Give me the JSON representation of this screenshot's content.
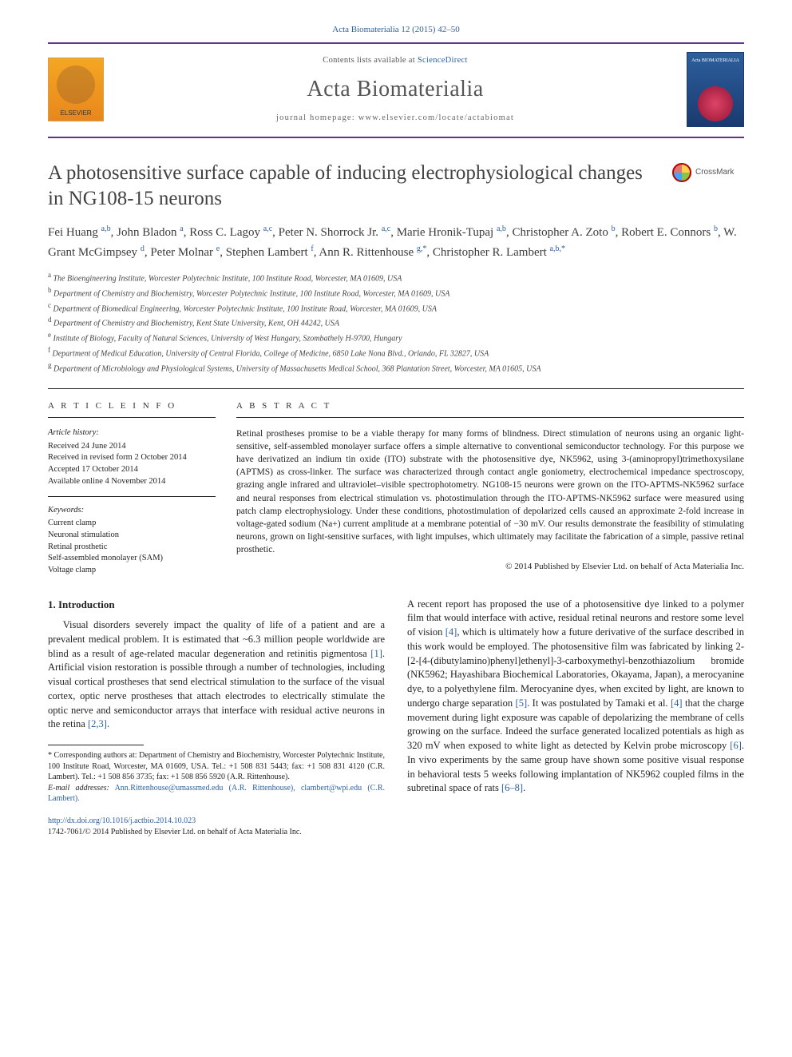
{
  "citation": "Acta Biomaterialia 12 (2015) 42–50",
  "header": {
    "publisher": "ELSEVIER",
    "avail_prefix": "Contents lists available at ",
    "avail_link": "ScienceDirect",
    "journal_name": "Acta Biomaterialia",
    "homepage_label": "journal homepage: ",
    "homepage_url": "www.elsevier.com/locate/actabiomat",
    "cover_label": "Acta BIOMATERIALIA"
  },
  "crossmark_label": "CrossMark",
  "article_title": "A photosensitive surface capable of inducing electrophysiological changes in NG108-15 neurons",
  "authors_html": "Fei Huang <sup>a,b</sup>, John Bladon <sup>a</sup>, Ross C. Lagoy <sup>a,c</sup>, Peter N. Shorrock Jr. <sup>a,c</sup>, Marie Hronik-Tupaj <sup>a,b</sup>, Christopher A. Zoto <sup>b</sup>, Robert E. Connors <sup>b</sup>, W. Grant McGimpsey <sup>d</sup>, Peter Molnar <sup>e</sup>, Stephen Lambert <sup>f</sup>, Ann R. Rittenhouse <sup>g,*</sup>, Christopher R. Lambert <sup>a,b,*</sup>",
  "affiliations": [
    {
      "label": "a",
      "text": "The Bioengineering Institute, Worcester Polytechnic Institute, 100 Institute Road, Worcester, MA 01609, USA"
    },
    {
      "label": "b",
      "text": "Department of Chemistry and Biochemistry, Worcester Polytechnic Institute, 100 Institute Road, Worcester, MA 01609, USA"
    },
    {
      "label": "c",
      "text": "Department of Biomedical Engineering, Worcester Polytechnic Institute, 100 Institute Road, Worcester, MA 01609, USA"
    },
    {
      "label": "d",
      "text": "Department of Chemistry and Biochemistry, Kent State University, Kent, OH 44242, USA"
    },
    {
      "label": "e",
      "text": "Institute of Biology, Faculty of Natural Sciences, University of West Hungary, Szombathely H-9700, Hungary"
    },
    {
      "label": "f",
      "text": "Department of Medical Education, University of Central Florida, College of Medicine, 6850 Lake Nona Blvd., Orlando, FL 32827, USA"
    },
    {
      "label": "g",
      "text": "Department of Microbiology and Physiological Systems, University of Massachusetts Medical School, 368 Plantation Street, Worcester, MA 01605, USA"
    }
  ],
  "info_head": "A R T I C L E   I N F O",
  "abs_head": "A B S T R A C T",
  "history_label": "Article history:",
  "history": [
    "Received 24 June 2014",
    "Received in revised form 2 October 2014",
    "Accepted 17 October 2014",
    "Available online 4 November 2014"
  ],
  "keywords_label": "Keywords:",
  "keywords": [
    "Current clamp",
    "Neuronal stimulation",
    "Retinal prosthetic",
    "Self-assembled monolayer (SAM)",
    "Voltage clamp"
  ],
  "abstract": "Retinal prostheses promise to be a viable therapy for many forms of blindness. Direct stimulation of neurons using an organic light-sensitive, self-assembled monolayer surface offers a simple alternative to conventional semiconductor technology. For this purpose we have derivatized an indium tin oxide (ITO) substrate with the photosensitive dye, NK5962, using 3-(aminopropyl)trimethoxysilane (APTMS) as cross-linker. The surface was characterized through contact angle goniometry, electrochemical impedance spectroscopy, grazing angle infrared and ultraviolet–visible spectrophotometry. NG108-15 neurons were grown on the ITO-APTMS-NK5962 surface and neural responses from electrical stimulation vs. photostimulation through the ITO-APTMS-NK5962 surface were measured using patch clamp electrophysiology. Under these conditions, photostimulation of depolarized cells caused an approximate 2-fold increase in voltage-gated sodium (Na+) current amplitude at a membrane potential of −30 mV. Our results demonstrate the feasibility of stimulating neurons, grown on light-sensitive surfaces, with light impulses, which ultimately may facilitate the fabrication of a simple, passive retinal prosthetic.",
  "abstract_copyright": "© 2014 Published by Elsevier Ltd. on behalf of Acta Materialia Inc.",
  "section_heading": "1. Introduction",
  "para1": "Visual disorders severely impact the quality of life of a patient and are a prevalent medical problem. It is estimated that ~6.3 million people worldwide are blind as a result of age-related macular degeneration and retinitis pigmentosa [1]. Artificial vision restoration is possible through a number of technologies, including visual cortical prostheses that send electrical stimulation to the surface of the visual cortex, optic nerve prostheses that attach electrodes to electrically stimulate the optic nerve and semiconductor arrays that interface with residual active neurons in the retina [2,3].",
  "para2": "A recent report has proposed the use of a photosensitive dye linked to a polymer film that would interface with active, residual retinal neurons and restore some level of vision [4], which is ultimately how a future derivative of the surface described in this work would be employed. The photosensitive film was fabricated by linking 2-[2-[4-(dibutylamino)phenyl]ethenyl]-3-carboxymethyl-benzothiazolium bromide (NK5962; Hayashibara Biochemical Laboratories, Okayama, Japan), a merocyanine dye, to a polyethylene film. Merocyanine dyes, when excited by light, are known to undergo charge separation [5]. It was postulated by Tamaki et al. [4] that the charge movement during light exposure was capable of depolarizing the membrane of cells growing on the surface. Indeed the surface generated localized potentials as high as 320 mV when exposed to white light as detected by Kelvin probe microscopy [6]. In vivo experiments by the same group have shown some positive visual response in behavioral tests 5 weeks following implantation of NK5962 coupled films in the subretinal space of rats [6–8].",
  "footnote_corresponding": "* Corresponding authors at: Department of Chemistry and Biochemistry, Worcester Polytechnic Institute, 100 Institute Road, Worcester, MA 01609, USA. Tel.: +1 508 831 5443; fax: +1 508 831 4120 (C.R. Lambert). Tel.: +1 508 856 3735; fax: +1 508 856 5920 (A.R. Rittenhouse).",
  "footnote_email_label": "E-mail addresses:",
  "footnote_emails": "Ann.Rittenhouse@umassmed.edu (A.R. Rittenhouse), clambert@wpi.edu (C.R. Lambert).",
  "doi_url": "http://dx.doi.org/10.1016/j.actbio.2014.10.023",
  "issn_line": "1742-7061/© 2014 Published by Elsevier Ltd. on behalf of Acta Materialia Inc.",
  "colors": {
    "link": "#2d5f9e",
    "rule": "#64328a",
    "text": "#222222",
    "elsevier_orange": "#e8871c"
  }
}
